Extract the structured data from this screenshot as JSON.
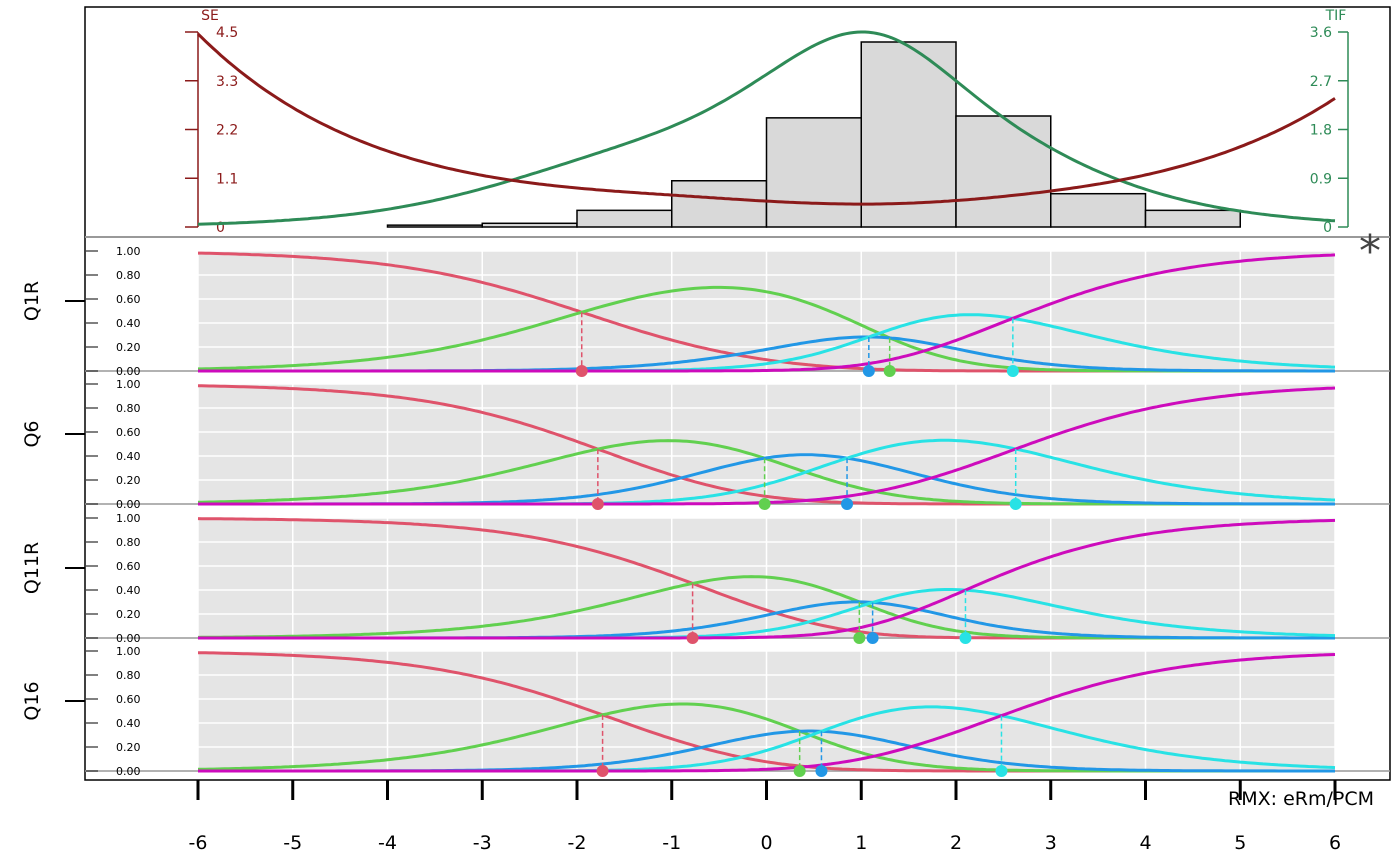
{
  "caption": "RMX: eRm/PCM",
  "asterisk": "*",
  "colors": {
    "se": "#8B1A1A",
    "tif": "#2E8B57",
    "categories": [
      "#DF536B",
      "#61D04F",
      "#2297E6",
      "#28E2E5",
      "#CD0BBC"
    ],
    "panel_bg": "#E5E5E5",
    "hist_fill": "#D9D9D9"
  },
  "chart_data": [
    {
      "type": "bar",
      "role": "person-location histogram with SE and TIF curves",
      "xlim": [
        -6,
        6
      ],
      "bins": [
        {
          "from": -4,
          "to": -3,
          "value": 0.01
        },
        {
          "from": -3,
          "to": -2,
          "value": 0.02
        },
        {
          "from": -2,
          "to": -1,
          "value": 0.09
        },
        {
          "from": -1,
          "to": 0,
          "value": 0.25
        },
        {
          "from": 0,
          "to": 1,
          "value": 0.59
        },
        {
          "from": 1,
          "to": 2,
          "value": 1.0
        },
        {
          "from": 2,
          "to": 3,
          "value": 0.6
        },
        {
          "from": 3,
          "to": 4,
          "value": 0.18
        },
        {
          "from": 4,
          "to": 5,
          "value": 0.09
        }
      ],
      "se_axis": {
        "label": "SE",
        "ticks": [
          "0",
          "1.1",
          "2.2",
          "3.3",
          "4.5"
        ],
        "ylim": [
          0,
          4.5
        ]
      },
      "tif_axis": {
        "label": "TIF",
        "ticks": [
          "0",
          "0.9",
          "1.8",
          "2.7",
          "3.6"
        ],
        "ylim": [
          0,
          3.6
        ]
      },
      "tif_peak": {
        "x": 0.95,
        "y": 3.6
      }
    },
    {
      "type": "line",
      "role": "category probability curves",
      "xlim": [
        -6,
        6
      ],
      "ylim": [
        0,
        1
      ],
      "y_ticks": [
        "0.00",
        "0.20",
        "0.40",
        "0.60",
        "0.80",
        "1.00"
      ],
      "x_ticks": [
        "-6",
        "-5",
        "-4",
        "-3",
        "-2",
        "-1",
        "0",
        "1",
        "2",
        "3",
        "4",
        "5",
        "6"
      ],
      "items": [
        {
          "label": "Q1R",
          "thresholds": [
            -1.95,
            1.3,
            1.08,
            2.6
          ]
        },
        {
          "label": "Q6",
          "thresholds": [
            -1.78,
            -0.02,
            0.85,
            2.63
          ]
        },
        {
          "label": "Q11R",
          "thresholds": [
            -0.78,
            0.98,
            1.12,
            2.1
          ]
        },
        {
          "label": "Q16",
          "thresholds": [
            -1.73,
            0.35,
            0.58,
            2.48
          ]
        }
      ]
    }
  ]
}
